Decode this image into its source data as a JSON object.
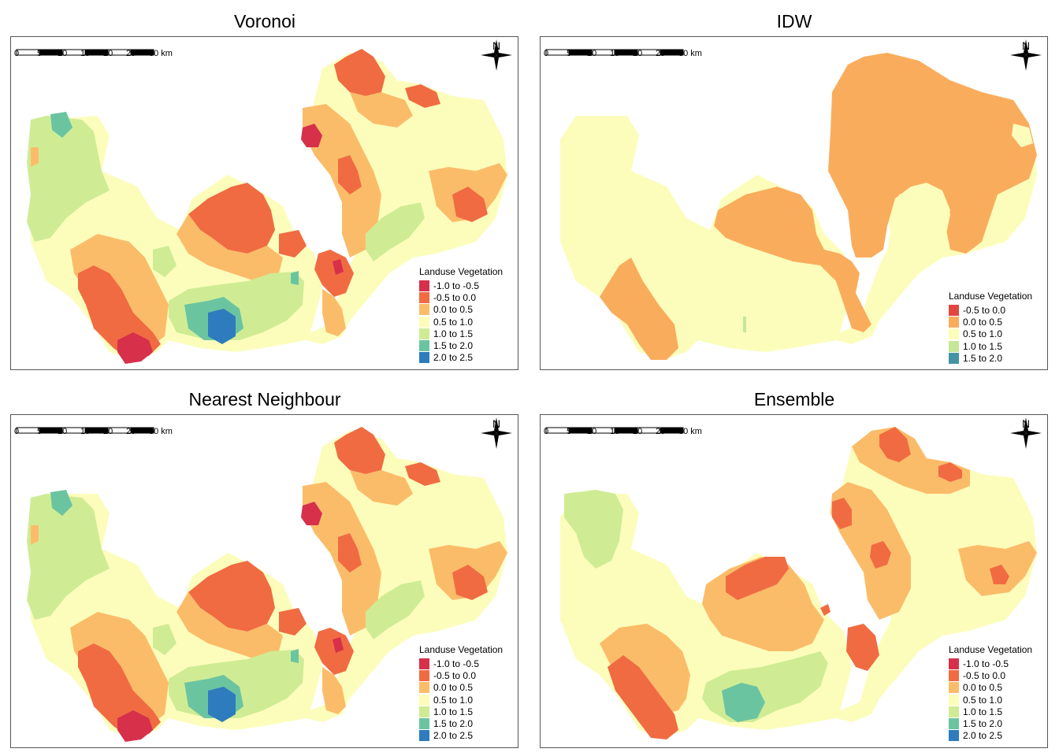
{
  "panels": [
    {
      "title": "Voronoi",
      "legend_title": "Landuse Vegetation",
      "legend": [
        {
          "label": "-1.0 to -0.5",
          "color": "#d6304b"
        },
        {
          "label": "-0.5 to 0.0",
          "color": "#f06b42"
        },
        {
          "label": "0.0 to 0.5",
          "color": "#fbbc6a"
        },
        {
          "label": "0.5 to 1.0",
          "color": "#fcfdbb"
        },
        {
          "label": "1.0 to 1.5",
          "color": "#cfec95"
        },
        {
          "label": "1.5 to 2.0",
          "color": "#6bc4a0"
        },
        {
          "label": "2.0 to 2.5",
          "color": "#2e7bbd"
        }
      ]
    },
    {
      "title": "IDW",
      "legend_title": "Landuse Vegetation",
      "legend": [
        {
          "label": "-0.5 to 0.0",
          "color": "#e2453f"
        },
        {
          "label": "0.0 to 0.5",
          "color": "#f9ad5c"
        },
        {
          "label": "0.5 to 1.0",
          "color": "#fcfdbb"
        },
        {
          "label": "1.0 to 1.5",
          "color": "#c5e797"
        },
        {
          "label": "1.5 to 2.0",
          "color": "#4393a5"
        }
      ]
    },
    {
      "title": "Nearest Neighbour",
      "legend_title": "Landuse Vegetation",
      "legend": [
        {
          "label": "-1.0 to -0.5",
          "color": "#d6304b"
        },
        {
          "label": "-0.5 to 0.0",
          "color": "#f06b42"
        },
        {
          "label": "0.0 to 0.5",
          "color": "#fbbc6a"
        },
        {
          "label": "0.5 to 1.0",
          "color": "#fcfdbb"
        },
        {
          "label": "1.0 to 1.5",
          "color": "#cfec95"
        },
        {
          "label": "1.5 to 2.0",
          "color": "#6bc4a0"
        },
        {
          "label": "2.0 to 2.5",
          "color": "#2e7bbd"
        }
      ]
    },
    {
      "title": "Ensemble",
      "legend_title": "Landuse Vegetation",
      "legend": [
        {
          "label": "-1.0 to -0.5",
          "color": "#d6304b"
        },
        {
          "label": "-0.5 to 0.0",
          "color": "#f06b42"
        },
        {
          "label": "0.0 to 0.5",
          "color": "#fbbc6a"
        },
        {
          "label": "0.5 to 1.0",
          "color": "#fcfdbb"
        },
        {
          "label": "1.0 to 1.5",
          "color": "#cfec95"
        },
        {
          "label": "1.5 to 2.0",
          "color": "#6bc4a0"
        },
        {
          "label": "2.0 to 2.5",
          "color": "#2e7bbd"
        }
      ]
    }
  ],
  "scalebar": {
    "ticks": [
      "0",
      "5",
      "10",
      "15",
      "20",
      "25",
      "30 km"
    ]
  },
  "north_label": "N",
  "colors": {
    "border": "#555555"
  }
}
